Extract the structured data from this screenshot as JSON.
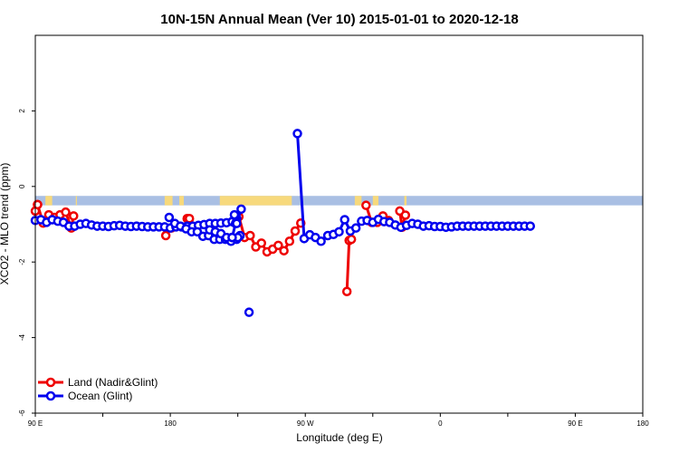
{
  "chart_data": {
    "type": "line",
    "title": "10N-15N Annual Mean (Ver 10)   2015-01-01 to 2020-12-18",
    "xlabel": "Longitude (deg E)",
    "ylabel": "XCO2 - MLO trend (ppm)",
    "xlim": [
      -90,
      180
    ],
    "ylim": [
      -6,
      4
    ],
    "x_ticks": [
      -90,
      -60,
      -30,
      0,
      30,
      60,
      90,
      120,
      150,
      180
    ],
    "x_tick_labels": [
      "90 E",
      "",
      "180",
      "",
      "90 W",
      "",
      "0",
      "",
      "90 E",
      "180"
    ],
    "y_ticks": [
      -6,
      -4,
      -2,
      0,
      2
    ],
    "y_tick_labels": [
      "-6",
      "-4",
      "-2",
      "0",
      "2"
    ],
    "legend_position": "bottom-left",
    "land_mask": {
      "y_range": [
        -0.5,
        -0.25
      ],
      "ocean_color": "#a9bfe3",
      "land_color": "#f7d97c",
      "land_regions": [
        [
          -85.5,
          -82.5
        ],
        [
          -72,
          -71.5
        ],
        [
          -32.5,
          -29
        ],
        [
          -26,
          -24
        ],
        [
          -8,
          24
        ],
        [
          52,
          55
        ],
        [
          60,
          62.5
        ],
        [
          74,
          75
        ]
      ]
    },
    "series": [
      {
        "name": "Land (Nadir&Glint)",
        "color": "#ee0000",
        "segments": [
          {
            "x": [
              -89,
              -86.5,
              -84,
              -81.5,
              -79,
              -76.5,
              -74,
              -73
            ],
            "y": [
              -0.48,
              -0.97,
              -0.75,
              -0.82,
              -0.75,
              -0.68,
              -1.1,
              -0.78
            ]
          },
          {
            "x": [
              -90,
              -89
            ],
            "y": [
              -0.65,
              -0.48
            ]
          },
          {
            "x": [
              -32,
              -29.5
            ],
            "y": [
              -1.3,
              -1.1
            ]
          },
          {
            "x": [
              -22.5,
              -21.5
            ],
            "y": [
              -0.85,
              -0.85
            ]
          },
          {
            "x": [
              -1,
              0.5,
              3,
              5.5,
              8,
              10.5,
              13,
              15.5,
              18,
              20.5,
              23,
              25.5,
              28
            ],
            "y": [
              -0.95,
              -0.8,
              -1.35,
              -1.3,
              -1.6,
              -1.5,
              -1.73,
              -1.66,
              -1.56,
              -1.7,
              -1.45,
              -1.18,
              -0.97
            ]
          },
          {
            "x": [
              48.5,
              49.5,
              50.5
            ],
            "y": [
              -2.78,
              -1.43,
              -1.4
            ]
          },
          {
            "x": [
              57,
              59.5,
              62,
              64.5,
              67
            ],
            "y": [
              -0.5,
              -0.95,
              -0.95,
              -0.78,
              -0.9
            ]
          },
          {
            "x": [
              72,
              73,
              74.5
            ],
            "y": [
              -0.65,
              -1.08,
              -0.76
            ]
          }
        ]
      },
      {
        "name": "Ocean (Glint)",
        "color": "#0000ee",
        "segments": [
          {
            "x": [
              -90,
              -87.5,
              -85,
              -82.5,
              -80,
              -77.5,
              -75,
              -72.5,
              -70,
              -67.5,
              -65,
              -62.5,
              -60,
              -57.5,
              -55,
              -52.5,
              -50,
              -47.5,
              -45,
              -42.5,
              -40,
              -37.5,
              -35,
              -32.5,
              -30,
              -27.5,
              -25,
              -22.5,
              -20,
              -17.5,
              -15,
              -12.5,
              -10,
              -7.5,
              -5,
              -2.5,
              -0.5,
              -1.5
            ],
            "y": [
              -0.9,
              -0.88,
              -0.95,
              -0.88,
              -0.92,
              -0.95,
              -1.05,
              -1.05,
              -1.0,
              -0.98,
              -1.02,
              -1.05,
              -1.05,
              -1.06,
              -1.04,
              -1.03,
              -1.05,
              -1.06,
              -1.05,
              -1.06,
              -1.07,
              -1.07,
              -1.07,
              -1.07,
              -1.1,
              -1.07,
              -1.07,
              -1.05,
              -1.05,
              -1.03,
              -1.01,
              -0.98,
              -0.98,
              -0.97,
              -0.96,
              -0.93,
              -0.85,
              -0.75
            ]
          },
          {
            "x": [
              -30.5,
              -28,
              -25.5,
              -23,
              -20.5,
              -18,
              -15.5,
              -13,
              -10.5,
              -8,
              -5.5,
              -3,
              -0.5,
              1
            ],
            "y": [
              -0.82,
              -0.98,
              -1.05,
              -1.12,
              -1.2,
              -1.2,
              -1.32,
              -1.3,
              -1.4,
              -1.4,
              -1.4,
              -1.45,
              -1.4,
              -1.3
            ]
          },
          {
            "x": [
              -12.5,
              -10,
              -7.5,
              -5,
              -2.5,
              0,
              -2.5,
              -1
            ],
            "y": [
              -1.15,
              -1.2,
              -1.25,
              -1.35,
              -1.35,
              -1.35,
              -1.35,
              -0.98
            ]
          },
          {
            "x": [
              -0.5,
              1.5
            ],
            "y": [
              -0.98,
              -0.6
            ]
          },
          {
            "x": [
              26.5,
              29.5,
              32,
              34.5,
              37,
              40,
              42.5,
              45,
              47.5,
              50,
              52.5,
              55,
              57.5,
              60,
              62.5,
              65,
              67.5,
              70,
              72.5,
              75,
              77.5,
              80,
              82.5,
              85,
              87.5,
              90,
              92.5,
              95,
              97.5,
              100,
              102.5,
              105,
              107.5,
              110,
              112.5,
              115,
              117.5,
              120,
              122.5,
              125,
              127.5,
              130
            ],
            "y": [
              1.4,
              -1.38,
              -1.28,
              -1.35,
              -1.45,
              -1.3,
              -1.27,
              -1.2,
              -0.88,
              -1.18,
              -1.1,
              -0.92,
              -0.9,
              -0.95,
              -0.87,
              -0.93,
              -0.95,
              -1.02,
              -1.08,
              -1.03,
              -0.98,
              -1.0,
              -1.05,
              -1.04,
              -1.06,
              -1.06,
              -1.08,
              -1.07,
              -1.05,
              -1.05,
              -1.05,
              -1.05,
              -1.05,
              -1.05,
              -1.05,
              -1.05,
              -1.05,
              -1.05,
              -1.05,
              -1.05,
              -1.05,
              -1.05
            ]
          }
        ]
      }
    ],
    "outliers": [
      {
        "series": "Ocean (Glint)",
        "x": 5,
        "y": -3.33
      }
    ]
  }
}
